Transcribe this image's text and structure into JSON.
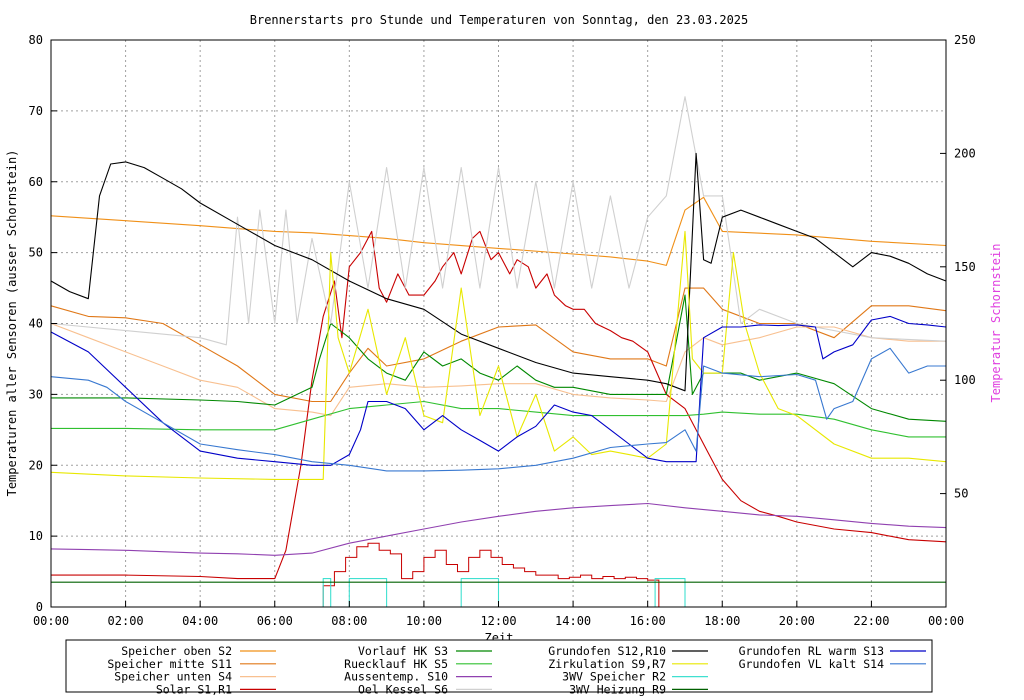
{
  "chart_data": {
    "type": "line",
    "title": "Brennerstarts pro Stunde und Temperaturen von Sonntag, den 23.03.2025",
    "xlabel": "Zeit",
    "ylabel": "Temperaturen aller Sensoren (ausser Schornstein)",
    "y2label": "Temperatur Schornstein",
    "x_ticks": [
      "00:00",
      "02:00",
      "04:00",
      "06:00",
      "08:00",
      "10:00",
      "12:00",
      "14:00",
      "16:00",
      "18:00",
      "20:00",
      "22:00",
      "00:00"
    ],
    "ylim": [
      0,
      80
    ],
    "y_ticks": [
      "0",
      "10",
      "20",
      "30",
      "40",
      "50",
      "60",
      "70",
      "80"
    ],
    "y2lim": [
      0,
      250
    ],
    "y2_ticks": [
      "50",
      "100",
      "150",
      "200",
      "250"
    ],
    "grid": true,
    "legend_position": "bottom",
    "x_unit": "hours",
    "series": [
      {
        "name": "Speicher oben",
        "tag": "S2",
        "color": "#f09018",
        "x": [
          0,
          2,
          4,
          6,
          7,
          8,
          9,
          10,
          12,
          14,
          15,
          16,
          16.5,
          17,
          17.5,
          18,
          20,
          22,
          24
        ],
        "y": [
          55.2,
          54.5,
          53.8,
          53.0,
          52.8,
          52.4,
          52.0,
          51.4,
          50.6,
          49.8,
          49.4,
          48.8,
          48.2,
          56,
          57.8,
          53,
          52.5,
          51.6,
          51.0
        ]
      },
      {
        "name": "Speicher mitte",
        "tag": "S11",
        "color": "#e07818",
        "x": [
          0,
          1,
          2,
          3,
          4,
          5,
          6,
          7,
          7.5,
          8,
          8.5,
          9,
          10,
          11,
          12,
          13,
          14,
          15,
          16,
          16.5,
          17,
          17.5,
          18,
          19,
          20,
          21,
          22,
          23,
          24
        ],
        "y": [
          42.5,
          41,
          40.8,
          40,
          37,
          34,
          30,
          29,
          29,
          33,
          36.5,
          34,
          35,
          37.5,
          39.5,
          39.8,
          36,
          35,
          35,
          34,
          45,
          45,
          42,
          40,
          40,
          38,
          42.5,
          42.5,
          41.8
        ]
      },
      {
        "name": "Speicher unten",
        "tag": "S4",
        "color": "#f8c090",
        "x": [
          0,
          1,
          2,
          3,
          4,
          5,
          6,
          7,
          7.5,
          8,
          9,
          10,
          11,
          12,
          13,
          14,
          15,
          16,
          16.5,
          17,
          17.5,
          18,
          19,
          20,
          21,
          22,
          23,
          24
        ],
        "y": [
          40,
          38,
          36,
          34,
          32,
          31,
          28,
          27.5,
          27,
          31,
          31.5,
          31,
          31.2,
          31.5,
          31.5,
          30,
          29.5,
          29.2,
          29,
          36,
          38,
          37,
          38,
          39.5,
          39.5,
          38,
          37.5,
          37.5
        ]
      },
      {
        "name": "Solar",
        "tag": "S1,R1",
        "color": "#c80000",
        "x": [
          0,
          2,
          4,
          5,
          6,
          6.3,
          6.7,
          7,
          7.3,
          7.6,
          7.8,
          8,
          8.3,
          8.6,
          8.8,
          9,
          9.3,
          9.6,
          10,
          10.3,
          10.5,
          10.8,
          11,
          11.3,
          11.5,
          11.8,
          12,
          12.3,
          12.5,
          12.8,
          13,
          13.3,
          13.5,
          13.8,
          14,
          14.3,
          14.6,
          15,
          15.3,
          15.6,
          16,
          16.5,
          17,
          17.3,
          17.6,
          18,
          18.5,
          19,
          19.5,
          20,
          21,
          22,
          23,
          24
        ],
        "y": [
          4.5,
          4.5,
          4.3,
          4,
          4,
          8,
          20,
          32,
          41,
          46,
          38,
          48,
          50,
          53,
          45,
          43,
          47,
          44,
          44,
          46,
          48,
          50,
          47,
          52,
          53,
          49,
          50,
          47,
          49,
          48,
          45,
          47,
          44,
          42.5,
          42,
          42,
          40,
          39,
          38,
          37.5,
          36,
          30,
          28,
          25,
          22,
          18,
          15,
          13.5,
          12.8,
          12,
          11,
          10.5,
          9.5,
          9.2
        ]
      },
      {
        "name": "Vorlauf HK",
        "tag": "S3",
        "color": "#008800",
        "x": [
          0,
          2,
          4,
          5,
          6,
          7,
          7.2,
          7.5,
          8,
          8.5,
          9,
          9.5,
          10,
          10.5,
          11,
          11.5,
          12,
          12.5,
          13,
          13.5,
          14,
          15,
          16,
          16.5,
          17,
          17.2,
          17.5,
          18,
          18.5,
          19,
          20,
          21,
          22,
          23,
          24
        ],
        "y": [
          29.5,
          29.5,
          29.2,
          29,
          28.5,
          31,
          35,
          40,
          38,
          35,
          33,
          32,
          36,
          34,
          35,
          33,
          32,
          34,
          32,
          31,
          31,
          30,
          30,
          30,
          44,
          30,
          33,
          33,
          33,
          32,
          33,
          31.5,
          28,
          26.5,
          26.2
        ]
      },
      {
        "name": "Ruecklauf HK",
        "tag": "S5",
        "color": "#30c030",
        "x": [
          0,
          2,
          4,
          6,
          7,
          8,
          9,
          10,
          11,
          12,
          13,
          14,
          15,
          16,
          17,
          17.5,
          18,
          19,
          20,
          21,
          22,
          23,
          24
        ],
        "y": [
          25.2,
          25.2,
          25,
          25,
          26.5,
          28,
          28.5,
          29,
          28,
          28,
          27.5,
          27,
          27,
          27,
          27,
          27.2,
          27.5,
          27.2,
          27.2,
          26.5,
          25,
          24,
          24
        ]
      },
      {
        "name": "Aussentemp.",
        "tag": "S10",
        "color": "#9040b0",
        "x": [
          0,
          1,
          2,
          3,
          4,
          5,
          6,
          7,
          8,
          9,
          10,
          11,
          12,
          13,
          14,
          15,
          16,
          17,
          18,
          19,
          20,
          21,
          22,
          23,
          24
        ],
        "y": [
          8.2,
          8.1,
          8,
          7.8,
          7.6,
          7.5,
          7.3,
          7.6,
          9,
          10,
          11,
          12,
          12.8,
          13.5,
          14,
          14.3,
          14.6,
          14,
          13.5,
          13,
          12.8,
          12.3,
          11.8,
          11.4,
          11.2
        ]
      },
      {
        "name": "Oel Kessel",
        "tag": "S6",
        "color": "#d0d0d0",
        "x": [
          0,
          2,
          4,
          4.7,
          5,
          5.3,
          5.6,
          6,
          6.3,
          6.6,
          7,
          7.5,
          8,
          8.5,
          9,
          9.5,
          10,
          10.5,
          11,
          11.5,
          12,
          12.5,
          13,
          13.5,
          14,
          14.5,
          15,
          15.5,
          16,
          16.5,
          17,
          17.5,
          18,
          18.5,
          19,
          20,
          22,
          24
        ],
        "y": [
          40,
          39,
          38,
          37,
          55,
          40,
          56,
          40,
          56,
          40,
          52,
          40,
          60,
          45,
          62,
          45,
          62,
          45,
          62,
          45,
          62,
          45,
          60,
          45,
          60,
          45,
          58,
          45,
          55,
          58,
          72,
          58,
          58,
          40,
          42,
          40,
          38,
          37.5
        ]
      },
      {
        "name": "Grundofen",
        "tag": "S12,R10",
        "color": "#000000",
        "x": [
          0,
          0.5,
          1,
          1.3,
          1.6,
          2,
          2.5,
          3,
          3.5,
          4,
          5,
          6,
          7,
          8,
          9,
          10,
          11,
          12,
          13,
          14,
          15,
          16,
          16.5,
          17,
          17.3,
          17.5,
          17.7,
          18,
          18.5,
          19,
          19.5,
          20,
          20.5,
          21,
          21.5,
          22,
          22.5,
          23,
          23.5,
          24
        ],
        "y": [
          46,
          44.5,
          43.5,
          58,
          62.5,
          62.8,
          62,
          60.5,
          59,
          57,
          54,
          51,
          49,
          46,
          43.5,
          42,
          38.5,
          36.5,
          34.5,
          33,
          32.5,
          32,
          31.5,
          30.5,
          64,
          49,
          48.5,
          55,
          56,
          55,
          54,
          53,
          52,
          50,
          48,
          50,
          49.5,
          48.5,
          47,
          46
        ]
      },
      {
        "name": "Zirkulation",
        "tag": "S9,R7",
        "color": "#e8e800",
        "x": [
          0,
          2,
          4,
          6,
          7.3,
          7.5,
          7.7,
          8,
          8.5,
          9,
          9.5,
          10,
          10.5,
          11,
          11.5,
          12,
          12.5,
          13,
          13.5,
          14,
          14.5,
          15,
          15.5,
          16,
          16.5,
          17,
          17.2,
          17.5,
          18,
          18.3,
          18.6,
          19,
          19.5,
          20,
          21,
          22,
          23,
          24
        ],
        "y": [
          19,
          18.5,
          18.2,
          18,
          18,
          50,
          38,
          33,
          42,
          30,
          38,
          27,
          26,
          45,
          27,
          34,
          24,
          30,
          22,
          24,
          21.5,
          22,
          21.5,
          21,
          23,
          53,
          35,
          33,
          33,
          50,
          40,
          33,
          28,
          27,
          23,
          21,
          21,
          20.5
        ]
      },
      {
        "name": "3WV Speicher",
        "tag": "R2",
        "color": "#40e0d0",
        "x": [
          7.3,
          7.3,
          7.5,
          7.5,
          8,
          8,
          9,
          9,
          11,
          11,
          12,
          12,
          16.2,
          16.2,
          17,
          17
        ],
        "y": [
          0,
          4,
          4,
          0,
          0,
          4,
          4,
          0,
          0,
          4,
          4,
          0,
          0,
          4,
          4,
          0
        ]
      },
      {
        "name": "Grundofen RL warm",
        "tag": "S13",
        "color": "#0000c8",
        "x": [
          0,
          1,
          2,
          3,
          4,
          5,
          6,
          7,
          7.5,
          8,
          8.3,
          8.5,
          9,
          9.5,
          10,
          10.5,
          11,
          11.5,
          12,
          12.5,
          13,
          13.5,
          14,
          14.5,
          15,
          15.5,
          16,
          16.5,
          17,
          17.3,
          17.5,
          18,
          18.5,
          19,
          19.5,
          20,
          20.5,
          20.7,
          21,
          21.5,
          22,
          22.5,
          23,
          23.5,
          24
        ],
        "y": [
          38.8,
          36,
          31,
          26,
          22,
          21,
          20.5,
          20,
          20,
          21.5,
          25,
          29,
          29,
          28,
          25,
          27,
          25,
          23.5,
          22,
          24,
          25.5,
          28.5,
          27.5,
          27,
          25,
          23,
          21,
          20.5,
          20.5,
          20.5,
          38,
          39.5,
          39.5,
          39.8,
          39.7,
          39.8,
          39.5,
          35,
          36,
          37,
          40.5,
          41,
          40,
          39.8,
          39.5
        ]
      },
      {
        "name": "Grundofen VL kalt",
        "tag": "S14",
        "color": "#3878d0",
        "x": [
          0,
          1,
          1.5,
          2,
          3,
          4,
          5,
          6,
          7,
          8,
          9,
          10,
          11,
          12,
          13,
          14,
          15,
          16,
          16.5,
          17,
          17.3,
          17.5,
          18,
          19,
          20,
          20.5,
          20.8,
          21,
          21.5,
          22,
          22.5,
          23,
          23.5,
          24
        ],
        "y": [
          32.5,
          32,
          31,
          29,
          26,
          23,
          22.2,
          21.5,
          20.5,
          20,
          19.2,
          19.2,
          19.3,
          19.5,
          20,
          21,
          22.5,
          23,
          23.2,
          25,
          22,
          34,
          33,
          32.5,
          32.8,
          32,
          26.5,
          28,
          29,
          35,
          36.5,
          33,
          34,
          34
        ]
      },
      {
        "name": "3WV Heizung",
        "tag": "R9",
        "color": "#006000",
        "x": [
          0,
          24
        ],
        "y": [
          3.5,
          3.5
        ]
      }
    ],
    "burner_starts": {
      "name": "Brennerstarts",
      "color": "#c80000",
      "x": [
        7.3,
        7.6,
        7.9,
        8.2,
        8.5,
        8.8,
        9.1,
        9.4,
        9.7,
        10,
        10.3,
        10.6,
        10.9,
        11.2,
        11.5,
        11.8,
        12.1,
        12.4,
        12.7,
        13,
        13.3,
        13.6,
        13.9,
        14.2,
        14.5,
        14.8,
        15.1,
        15.4,
        15.7,
        16
      ],
      "y": [
        3,
        5,
        7,
        8.5,
        9,
        8,
        7.5,
        4,
        5,
        7,
        8,
        6,
        5,
        7,
        8,
        7,
        6,
        5.5,
        5,
        4.5,
        4.5,
        4,
        4.2,
        4.5,
        4,
        4.3,
        4,
        4.2,
        4,
        3.8
      ]
    }
  },
  "legend": [
    {
      "name": "Speicher oben",
      "tag": "S2",
      "color": "#f09018"
    },
    {
      "name": "Speicher mitte",
      "tag": "S11",
      "color": "#e07818"
    },
    {
      "name": "Speicher unten",
      "tag": "S4",
      "color": "#f8c090"
    },
    {
      "name": "Solar",
      "tag": "S1,R1",
      "color": "#c80000"
    },
    {
      "name": "Vorlauf HK",
      "tag": "S3",
      "color": "#008800"
    },
    {
      "name": "Ruecklauf HK",
      "tag": "S5",
      "color": "#30c030"
    },
    {
      "name": "Aussentemp.",
      "tag": "S10",
      "color": "#9040b0"
    },
    {
      "name": "Oel Kessel",
      "tag": "S6",
      "color": "#d0d0d0"
    },
    {
      "name": "Grundofen",
      "tag": "S12,R10",
      "color": "#000000"
    },
    {
      "name": "Zirkulation",
      "tag": "S9,R7",
      "color": "#e8e800"
    },
    {
      "name": "3WV Speicher",
      "tag": "R2",
      "color": "#40e0d0"
    },
    {
      "name": "3WV Heizung",
      "tag": "R9",
      "color": "#006000"
    },
    {
      "name": "Grundofen RL warm",
      "tag": "S13",
      "color": "#0000c8"
    },
    {
      "name": "Grundofen VL kalt",
      "tag": "S14",
      "color": "#3878d0"
    }
  ]
}
